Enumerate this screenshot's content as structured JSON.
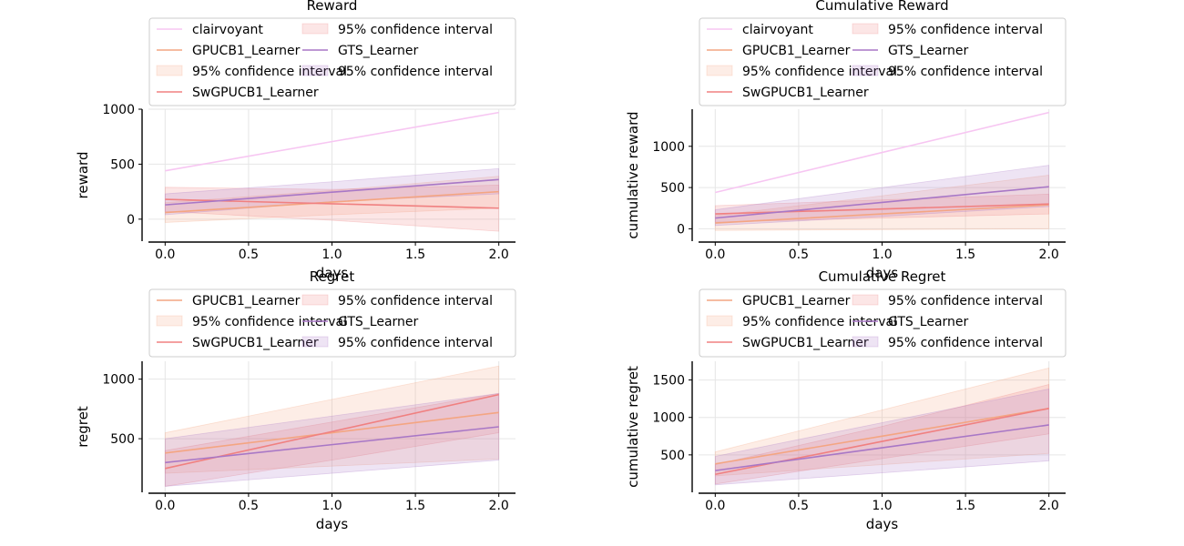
{
  "chart_data": [
    {
      "type": "line",
      "title": "Reward",
      "xlabel": "days",
      "ylabel": "reward",
      "x": [
        0,
        1,
        2
      ],
      "xticks": [
        0.0,
        0.5,
        1.0,
        1.5,
        2.0
      ],
      "xtick_labels": [
        "0.0",
        "0.5",
        "1.0",
        "1.5",
        "2.0"
      ],
      "yticks": [
        0,
        500,
        1000
      ],
      "ytick_labels": [
        "0",
        "500",
        "1000"
      ],
      "xlim": [
        -0.1,
        2.1
      ],
      "ylim": [
        -200,
        1000
      ],
      "grid": true,
      "legend_position": "top",
      "series": [
        {
          "name": "clairvoyant",
          "color": "#f7c6f2",
          "values": [
            440,
            705,
            970
          ]
        },
        {
          "name": "GPUCB1_Learner",
          "color": "#f4a582",
          "values": [
            60,
            155,
            250
          ],
          "ci_low": [
            -30,
            40,
            100
          ],
          "ci_high": [
            150,
            260,
            390
          ]
        },
        {
          "name": "SwGPUCB1_Learner",
          "color": "#f08080",
          "values": [
            180,
            140,
            100
          ],
          "ci_low": [
            70,
            -10,
            -110
          ],
          "ci_high": [
            290,
            270,
            310
          ]
        },
        {
          "name": "GTS_Learner",
          "color": "#a877c6",
          "values": [
            130,
            245,
            360
          ],
          "ci_low": [
            40,
            160,
            230
          ],
          "ci_high": [
            230,
            340,
            460
          ]
        }
      ],
      "legend_entries": [
        {
          "label": "clairvoyant",
          "kind": "line",
          "color": "#f7c6f2"
        },
        {
          "label": "GPUCB1_Learner",
          "kind": "line",
          "color": "#f4a582"
        },
        {
          "label": "95% confidence interval",
          "kind": "patch",
          "color": "#f4a582"
        },
        {
          "label": "SwGPUCB1_Learner",
          "kind": "line",
          "color": "#f08080"
        },
        {
          "label": "95% confidence interval",
          "kind": "patch",
          "color": "#f08080"
        },
        {
          "label": "GTS_Learner",
          "kind": "line",
          "color": "#a877c6"
        },
        {
          "label": "95% confidence interval",
          "kind": "patch",
          "color": "#a877c6"
        }
      ]
    },
    {
      "type": "line",
      "title": "Cumulative Reward",
      "xlabel": "days",
      "ylabel": "cumulative reward",
      "x": [
        0,
        1,
        2
      ],
      "xticks": [
        0.0,
        0.5,
        1.0,
        1.5,
        2.0
      ],
      "xtick_labels": [
        "0.0",
        "0.5",
        "1.0",
        "1.5",
        "2.0"
      ],
      "yticks": [
        0,
        500,
        1000
      ],
      "ytick_labels": [
        "0",
        "500",
        "1000"
      ],
      "xlim": [
        -0.1,
        2.1
      ],
      "ylim": [
        -150,
        1450
      ],
      "grid": true,
      "legend_position": "top",
      "series": [
        {
          "name": "clairvoyant",
          "color": "#f7c6f2",
          "values": [
            440,
            925,
            1410
          ]
        },
        {
          "name": "GPUCB1_Learner",
          "color": "#f4a582",
          "values": [
            70,
            180,
            290
          ],
          "ci_low": [
            -20,
            -10,
            0
          ],
          "ci_high": [
            160,
            400,
            650
          ]
        },
        {
          "name": "SwGPUCB1_Learner",
          "color": "#f08080",
          "values": [
            180,
            240,
            300
          ],
          "ci_low": [
            80,
            130,
            180
          ],
          "ci_high": [
            280,
            350,
            420
          ]
        },
        {
          "name": "GTS_Learner",
          "color": "#a877c6",
          "values": [
            130,
            320,
            510
          ],
          "ci_low": [
            40,
            150,
            270
          ],
          "ci_high": [
            230,
            500,
            770
          ]
        }
      ],
      "legend_entries": [
        {
          "label": "clairvoyant",
          "kind": "line",
          "color": "#f7c6f2"
        },
        {
          "label": "GPUCB1_Learner",
          "kind": "line",
          "color": "#f4a582"
        },
        {
          "label": "95% confidence interval",
          "kind": "patch",
          "color": "#f4a582"
        },
        {
          "label": "SwGPUCB1_Learner",
          "kind": "line",
          "color": "#f08080"
        },
        {
          "label": "95% confidence interval",
          "kind": "patch",
          "color": "#f08080"
        },
        {
          "label": "GTS_Learner",
          "kind": "line",
          "color": "#a877c6"
        },
        {
          "label": "95% confidence interval",
          "kind": "patch",
          "color": "#a877c6"
        }
      ]
    },
    {
      "type": "line",
      "title": "Regret",
      "xlabel": "days",
      "ylabel": "regret",
      "x": [
        0,
        1,
        2
      ],
      "xticks": [
        0.0,
        0.5,
        1.0,
        1.5,
        2.0
      ],
      "xtick_labels": [
        "0.0",
        "0.5",
        "1.0",
        "1.5",
        "2.0"
      ],
      "yticks": [
        500,
        1000
      ],
      "ytick_labels": [
        "500",
        "1000"
      ],
      "xlim": [
        -0.1,
        2.1
      ],
      "ylim": [
        50,
        1150
      ],
      "grid": true,
      "legend_position": "top",
      "series": [
        {
          "name": "GPUCB1_Learner",
          "color": "#f4a582",
          "values": [
            380,
            550,
            720
          ],
          "ci_low": [
            210,
            270,
            330
          ],
          "ci_high": [
            550,
            830,
            1110
          ]
        },
        {
          "name": "SwGPUCB1_Learner",
          "color": "#f08080",
          "values": [
            250,
            560,
            870
          ],
          "ci_low": [
            100,
            320,
            550
          ],
          "ci_high": [
            400,
            640,
            880
          ]
        },
        {
          "name": "GTS_Learner",
          "color": "#a877c6",
          "values": [
            300,
            450,
            600
          ],
          "ci_low": [
            100,
            210,
            320
          ],
          "ci_high": [
            500,
            690,
            880
          ]
        }
      ],
      "legend_entries": [
        {
          "label": "GPUCB1_Learner",
          "kind": "line",
          "color": "#f4a582"
        },
        {
          "label": "95% confidence interval",
          "kind": "patch",
          "color": "#f4a582"
        },
        {
          "label": "SwGPUCB1_Learner",
          "kind": "line",
          "color": "#f08080"
        },
        {
          "label": "95% confidence interval",
          "kind": "patch",
          "color": "#f08080"
        },
        {
          "label": "GTS_Learner",
          "kind": "line",
          "color": "#a877c6"
        },
        {
          "label": "95% confidence interval",
          "kind": "patch",
          "color": "#a877c6"
        }
      ]
    },
    {
      "type": "line",
      "title": "Cumulative Regret",
      "xlabel": "days",
      "ylabel": "cumulative regret",
      "x": [
        0,
        1,
        2
      ],
      "xticks": [
        0.0,
        0.5,
        1.0,
        1.5,
        2.0
      ],
      "xtick_labels": [
        "0.0",
        "0.5",
        "1.0",
        "1.5",
        "2.0"
      ],
      "yticks": [
        500,
        1000,
        1500
      ],
      "ytick_labels": [
        "500",
        "1000",
        "1500"
      ],
      "xlim": [
        -0.1,
        2.1
      ],
      "ylim": [
        0,
        1750
      ],
      "grid": true,
      "legend_position": "top",
      "series": [
        {
          "name": "GPUCB1_Learner",
          "color": "#f4a582",
          "values": [
            380,
            750,
            1120
          ],
          "ci_low": [
            220,
            370,
            520
          ],
          "ci_high": [
            540,
            1100,
            1660
          ]
        },
        {
          "name": "SwGPUCB1_Learner",
          "color": "#f08080",
          "values": [
            240,
            680,
            1120
          ],
          "ci_low": [
            110,
            450,
            780
          ],
          "ci_high": [
            370,
            880,
            1440
          ]
        },
        {
          "name": "GTS_Learner",
          "color": "#a877c6",
          "values": [
            290,
            595,
            900
          ],
          "ci_low": [
            100,
            260,
            420
          ],
          "ci_high": [
            480,
            930,
            1380
          ]
        }
      ],
      "legend_entries": [
        {
          "label": "GPUCB1_Learner",
          "kind": "line",
          "color": "#f4a582"
        },
        {
          "label": "95% confidence interval",
          "kind": "patch",
          "color": "#f4a582"
        },
        {
          "label": "SwGPUCB1_Learner",
          "kind": "line",
          "color": "#f08080"
        },
        {
          "label": "95% confidence interval",
          "kind": "patch",
          "color": "#f08080"
        },
        {
          "label": "GTS_Learner",
          "kind": "line",
          "color": "#a877c6"
        },
        {
          "label": "95% confidence interval",
          "kind": "patch",
          "color": "#a877c6"
        }
      ]
    }
  ]
}
